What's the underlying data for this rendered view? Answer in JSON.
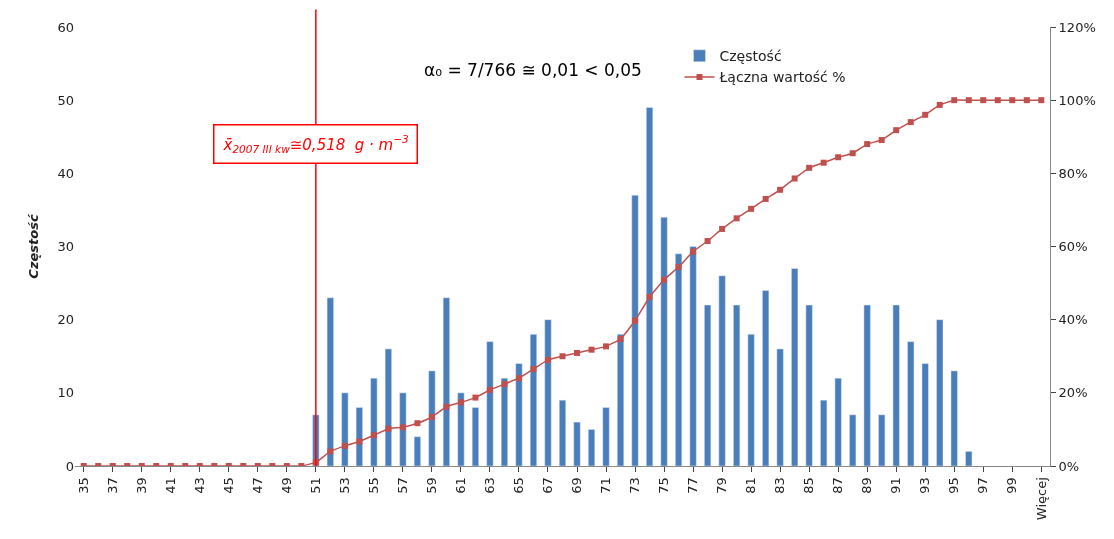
{
  "chart_data": {
    "type": "bar",
    "ylabel": "Częstość",
    "categories": [
      "35",
      null,
      "37",
      null,
      "39",
      null,
      "41",
      null,
      "43",
      null,
      "45",
      null,
      "47",
      null,
      "49",
      null,
      "51",
      null,
      "53",
      null,
      "55",
      null,
      "57",
      null,
      "59",
      null,
      "61",
      null,
      "63",
      null,
      "65",
      null,
      "67",
      null,
      "69",
      null,
      "71",
      null,
      "73",
      null,
      "75",
      null,
      "77",
      null,
      "79",
      null,
      "81",
      null,
      "83",
      null,
      "85",
      null,
      "87",
      null,
      "89",
      null,
      "91",
      null,
      "93",
      null,
      "95",
      null,
      "97",
      null,
      "99",
      null,
      "Więcej"
    ],
    "series": [
      {
        "name": "Częstość",
        "color": "#4a7ebb",
        "values": [
          null,
          null,
          null,
          null,
          null,
          null,
          null,
          null,
          null,
          null,
          null,
          null,
          null,
          null,
          null,
          null,
          7,
          23,
          10,
          8,
          12,
          16,
          10,
          4,
          13,
          23,
          10,
          8,
          17,
          12,
          14,
          18,
          20,
          9,
          6,
          5,
          8,
          18,
          37,
          49,
          34,
          29,
          30,
          22,
          26,
          22,
          18,
          24,
          16,
          27,
          22,
          9,
          12,
          7,
          22,
          7,
          22,
          17,
          14,
          20,
          13,
          2,
          null,
          null,
          null,
          null,
          null
        ]
      },
      {
        "name": "Łączna wartość %",
        "type": "line",
        "axis": "y2",
        "color": "#c0504d",
        "marker": "square",
        "values": [
          0,
          0,
          0,
          0,
          0,
          0,
          0,
          0,
          0,
          0,
          0,
          0,
          0,
          0,
          0,
          0,
          1,
          4,
          5.5,
          6.7,
          8.4,
          10.2,
          10.6,
          11.7,
          13.4,
          16.2,
          17.4,
          18.7,
          20.8,
          22.4,
          24,
          26.5,
          29,
          30,
          30.9,
          31.8,
          32.7,
          34.7,
          39.7,
          46.2,
          50.9,
          54.4,
          58.6,
          61.5,
          64.8,
          67.7,
          70.3,
          73,
          75.5,
          78.6,
          81.5,
          82.9,
          84.4,
          85.5,
          88,
          89.1,
          91.8,
          94,
          96,
          98.7,
          100,
          100,
          100,
          100,
          100,
          100,
          100
        ]
      }
    ],
    "ylim": [
      0,
      60
    ],
    "yticks": [
      0,
      10,
      20,
      30,
      40,
      50,
      60
    ],
    "y2lim": [
      0,
      120
    ],
    "y2ticks": [
      {
        "value": 0,
        "label": "0%"
      },
      {
        "value": 20,
        "label": "20%"
      },
      {
        "value": 40,
        "label": "40%"
      },
      {
        "value": 60,
        "label": "60%"
      },
      {
        "value": 80,
        "label": "80%"
      },
      {
        "value": 100,
        "label": "100%"
      },
      {
        "value": 120,
        "label": "120%"
      }
    ],
    "ref_lines": [
      {
        "axis": "x",
        "value": "51",
        "label": "x̄$_{2007 III kw}$≅0,518  g · m$^{−3}$",
        "color": "#ff0000"
      }
    ],
    "annotations": [
      "α₀ = 7/766 ≅ 0,01 < 0,05"
    ],
    "legend": "top right"
  }
}
